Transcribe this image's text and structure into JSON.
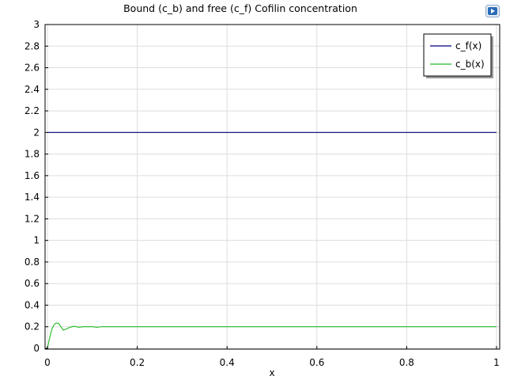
{
  "chart_data": {
    "type": "line",
    "title": "Bound (c_b) and free (c_f) Cofilin concentration",
    "xlabel": "x",
    "ylabel": "",
    "xlim": [
      0,
      1
    ],
    "ylim": [
      0,
      3
    ],
    "xticks": [
      "0",
      "0.2",
      "0.4",
      "0.6",
      "0.8",
      "1"
    ],
    "yticks": [
      "0",
      "0.2",
      "0.4",
      "0.6",
      "0.8",
      "1",
      "1.2",
      "1.4",
      "1.6",
      "1.8",
      "2",
      "2.2",
      "2.4",
      "2.6",
      "2.8",
      "3"
    ],
    "grid": true,
    "legend_position": "top-right",
    "series": [
      {
        "name": "c_f(x)",
        "color": "#000080",
        "x": [
          0,
          1
        ],
        "y": [
          2,
          2
        ]
      },
      {
        "name": "c_b(x)",
        "color": "#22bb22",
        "x": [
          0,
          0.005,
          0.01,
          0.015,
          0.02,
          0.025,
          0.03,
          0.035,
          0.04,
          0.05,
          0.06,
          0.07,
          0.08,
          0.09,
          0.1,
          0.11,
          0.12,
          0.2,
          0.4,
          0.6,
          0.8,
          1
        ],
        "y": [
          0,
          0.1,
          0.18,
          0.22,
          0.235,
          0.23,
          0.2,
          0.17,
          0.175,
          0.195,
          0.205,
          0.195,
          0.2,
          0.2,
          0.2,
          0.195,
          0.2,
          0.2,
          0.2,
          0.2,
          0.2,
          0.2
        ]
      }
    ]
  },
  "app": {
    "logo_icon": "comsol-logo-icon"
  }
}
